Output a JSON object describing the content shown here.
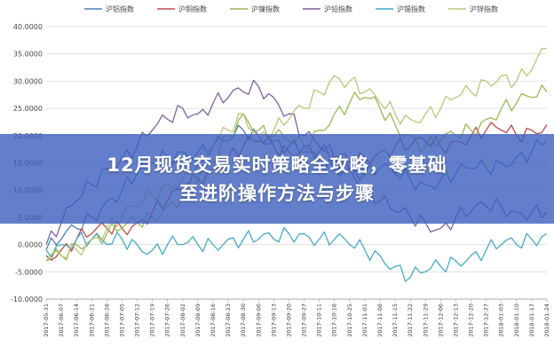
{
  "headline": {
    "line1": "12月现货交易实时策略全攻略，零基础",
    "line2": "至进阶操作方法与步骤"
  },
  "chart_data": {
    "type": "line",
    "ylim": [
      -10,
      40
    ],
    "y_ticks": [
      "40.0000",
      "35.0000",
      "30.0000",
      "25.0000",
      "20.0000",
      "15.0000",
      "10.0000",
      "5.0000",
      "0.0000",
      "-5.0000",
      "-10.0000"
    ],
    "x_ticks": [
      "2017-05-31",
      "2017-06-07",
      "2017-06-14",
      "2017-06-21",
      "2017-06-28",
      "2017-07-05",
      "2017-07-12",
      "2017-07-19",
      "2017-07-26",
      "2017-08-02",
      "2017-08-09",
      "2017-08-16",
      "2017-08-23",
      "2017-08-30",
      "2017-09-06",
      "2017-09-13",
      "2017-09-20",
      "2017-09-27",
      "2017-10-11",
      "2017-10-18",
      "2017-10-25",
      "2017-11-01",
      "2017-11-08",
      "2017-11-15",
      "2017-11-22",
      "2017-11-29",
      "2017-12-06",
      "2017-12-13",
      "2017-12-20",
      "2017-12-27",
      "2018-01-03",
      "2018-01-10",
      "2018-01-17",
      "2018-01-24"
    ],
    "legend_position": "top",
    "grid": true,
    "series": [
      {
        "name": "沪铝指数",
        "color": "#4a7ebb",
        "values": [
          -1,
          1,
          3,
          5,
          8,
          10,
          13,
          15,
          16,
          17,
          17,
          18,
          19,
          21,
          20,
          19,
          18,
          17,
          15,
          14,
          14,
          13,
          14,
          13,
          12,
          11,
          12,
          13,
          14,
          14,
          15,
          16,
          17,
          19
        ]
      },
      {
        "name": "沪铜指数",
        "color": "#be4b48",
        "values": [
          -2,
          -1,
          1,
          2,
          3,
          3,
          4,
          6,
          8,
          10,
          12,
          14,
          16,
          18,
          19,
          18,
          17,
          18,
          17,
          16,
          15,
          16,
          17,
          18,
          18,
          19,
          18,
          19,
          20,
          21,
          21,
          20,
          21,
          22
        ]
      },
      {
        "name": "沪镍指数",
        "color": "#98b954",
        "values": [
          -3,
          -2,
          0,
          1,
          2,
          3,
          4,
          5,
          7,
          9,
          12,
          15,
          20,
          24,
          21,
          20,
          19,
          18,
          21,
          24,
          26,
          27,
          25,
          22,
          20,
          18,
          19,
          20,
          21,
          23,
          25,
          26,
          27,
          28
        ]
      },
      {
        "name": "沪铅指数",
        "color": "#7d60a0",
        "values": [
          0,
          4,
          8,
          11,
          14,
          16,
          18,
          21,
          23,
          25,
          24,
          26,
          27,
          28,
          29,
          27,
          24,
          20,
          18,
          16,
          14,
          11,
          8,
          6,
          5,
          4,
          3,
          5,
          6,
          7,
          7,
          6,
          6,
          6
        ]
      },
      {
        "name": "沪锡指数",
        "color": "#46aac5",
        "values": [
          -1,
          0,
          1,
          1,
          0,
          1,
          0,
          -1,
          0,
          0,
          0,
          0,
          1,
          1,
          1,
          1,
          2,
          2,
          1,
          1,
          0,
          -1,
          -2,
          -4,
          -6,
          -5,
          -4,
          -3,
          -2,
          -1,
          0,
          0,
          1,
          2
        ]
      },
      {
        "name": "沪锌指数",
        "color": "#c2c27a",
        "values": [
          -3,
          -2,
          -1,
          1,
          3,
          5,
          7,
          9,
          11,
          12,
          15,
          18,
          21,
          24,
          20,
          21,
          23,
          25,
          28,
          31,
          30,
          28,
          26,
          24,
          23,
          24,
          25,
          27,
          28,
          30,
          31,
          30,
          32,
          36
        ]
      }
    ]
  }
}
